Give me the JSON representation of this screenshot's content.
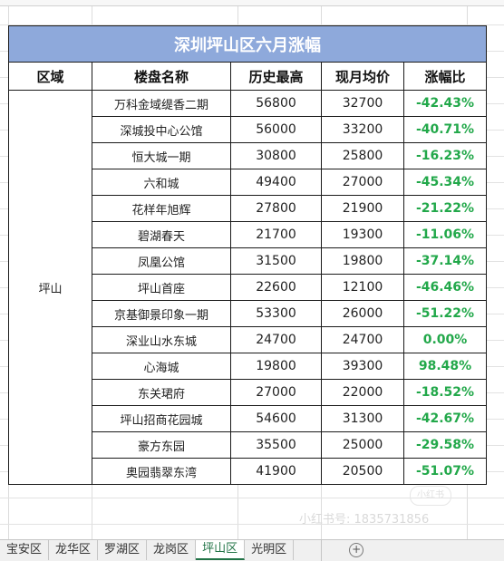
{
  "table": {
    "title": "深圳坪山区六月涨幅",
    "headers": [
      "区域",
      "楼盘名称",
      "历史最高",
      "现月均价",
      "涨幅比"
    ],
    "region": "坪山",
    "rows": [
      {
        "name": "万科金域缇香二期",
        "high": "56800",
        "avg": "32700",
        "pct": "-42.43%"
      },
      {
        "name": "深城投中心公馆",
        "high": "56000",
        "avg": "33200",
        "pct": "-40.71%"
      },
      {
        "name": "恒大城一期",
        "high": "30800",
        "avg": "25800",
        "pct": "-16.23%"
      },
      {
        "name": "六和城",
        "high": "49400",
        "avg": "27000",
        "pct": "-45.34%"
      },
      {
        "name": "花样年旭辉",
        "high": "27800",
        "avg": "21900",
        "pct": "-21.22%"
      },
      {
        "name": "碧湖春天",
        "high": "21700",
        "avg": "19300",
        "pct": "-11.06%"
      },
      {
        "name": "凤凰公馆",
        "high": "31500",
        "avg": "19800",
        "pct": "-37.14%"
      },
      {
        "name": "坪山首座",
        "high": "22600",
        "avg": "12100",
        "pct": "-46.46%"
      },
      {
        "name": "京基御景印象一期",
        "high": "53300",
        "avg": "26000",
        "pct": "-51.22%"
      },
      {
        "name": "深业山水东城",
        "high": "24700",
        "avg": "24700",
        "pct": "0.00%"
      },
      {
        "name": "心海城",
        "high": "19800",
        "avg": "39300",
        "pct": "98.48%"
      },
      {
        "name": "东关珺府",
        "high": "27000",
        "avg": "22000",
        "pct": "-18.52%"
      },
      {
        "name": "坪山招商花园城",
        "high": "54600",
        "avg": "31300",
        "pct": "-42.67%"
      },
      {
        "name": "豪方东园",
        "high": "35500",
        "avg": "25000",
        "pct": "-29.58%"
      },
      {
        "name": "奥园翡翠东湾",
        "high": "41900",
        "avg": "20500",
        "pct": "-51.07%"
      }
    ]
  },
  "colors": {
    "title_bg": "#8ea9db",
    "title_text": "#ffffff",
    "pct_text": "#22a84a",
    "active_tab": "#217346"
  },
  "watermark": {
    "logo_text": "小红书",
    "id_text": "小红书号: 1835731856"
  },
  "tabs": {
    "items": [
      "宝安区",
      "龙华区",
      "罗湖区",
      "龙岗区",
      "坪山区",
      "光明区"
    ],
    "active_index": 4,
    "add_icon": "plus-circle-icon"
  }
}
